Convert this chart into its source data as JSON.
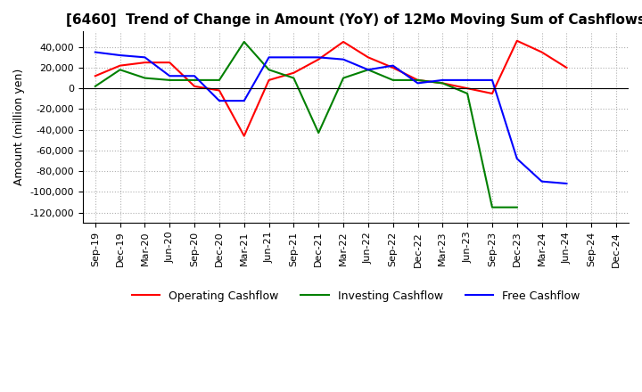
{
  "title": "[6460]  Trend of Change in Amount (YoY) of 12Mo Moving Sum of Cashflows",
  "ylabel": "Amount (million yen)",
  "ylim": [
    -130000,
    55000
  ],
  "yticks": [
    40000,
    20000,
    0,
    -20000,
    -40000,
    -60000,
    -80000,
    -100000,
    -120000
  ],
  "x_labels": [
    "Sep-19",
    "Dec-19",
    "Mar-20",
    "Jun-20",
    "Sep-20",
    "Dec-20",
    "Mar-21",
    "Jun-21",
    "Sep-21",
    "Dec-21",
    "Mar-22",
    "Jun-22",
    "Sep-22",
    "Dec-22",
    "Mar-23",
    "Jun-23",
    "Sep-23",
    "Dec-23",
    "Mar-24",
    "Jun-24",
    "Sep-24",
    "Dec-24"
  ],
  "operating_cashflow": [
    12000,
    22000,
    25000,
    25000,
    2000,
    -2000,
    -46000,
    8000,
    15000,
    28000,
    45000,
    30000,
    20000,
    8000,
    5000,
    0,
    -5000,
    46000,
    35000,
    20000,
    null,
    null
  ],
  "investing_cashflow": [
    2000,
    18000,
    10000,
    8000,
    8000,
    8000,
    45000,
    18000,
    10000,
    -43000,
    10000,
    18000,
    8000,
    8000,
    5000,
    -5000,
    -115000,
    -115000,
    null,
    null,
    null,
    null
  ],
  "free_cashflow": [
    35000,
    32000,
    30000,
    12000,
    12000,
    -12000,
    -12000,
    30000,
    30000,
    30000,
    28000,
    18000,
    22000,
    5000,
    8000,
    8000,
    8000,
    -68000,
    -90000,
    -92000,
    null,
    null
  ],
  "operating_color": "#ff0000",
  "investing_color": "#008000",
  "free_color": "#0000ff",
  "background_color": "#ffffff",
  "grid_color": "#b0b0b0",
  "title_fontsize": 11,
  "label_fontsize": 9,
  "tick_fontsize": 8
}
